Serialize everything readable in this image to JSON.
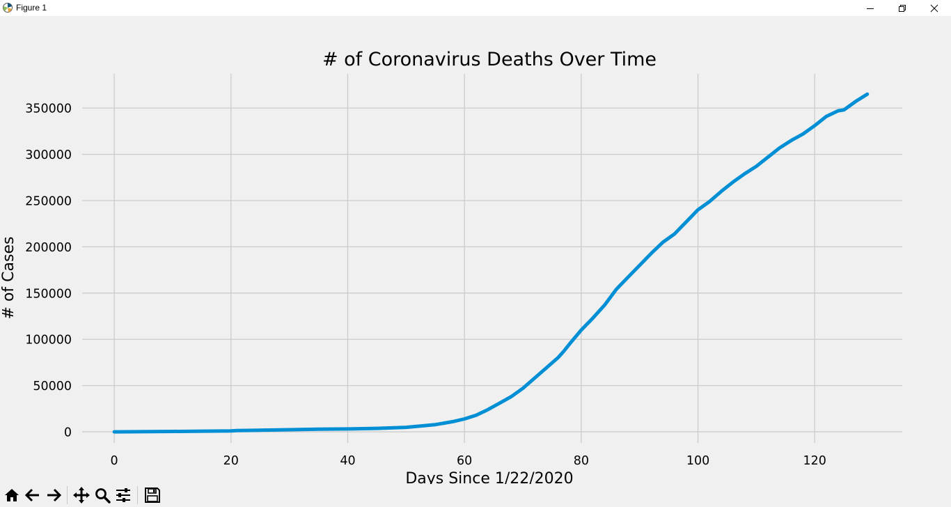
{
  "window": {
    "title": "Figure 1",
    "icons": {
      "app": "matplotlib-icon",
      "minimize": "minimize-icon",
      "maximize": "restore-icon",
      "close": "close-icon"
    }
  },
  "toolbar": {
    "buttons": [
      {
        "name": "home-icon"
      },
      {
        "name": "back-arrow-icon"
      },
      {
        "name": "forward-arrow-icon"
      },
      {
        "name": "pan-icon"
      },
      {
        "name": "zoom-icon"
      },
      {
        "name": "configure-subplots-icon"
      },
      {
        "name": "save-icon"
      }
    ]
  },
  "chart_data": {
    "type": "line",
    "title": "# of Coronavirus Deaths Over Time",
    "xlabel": "Days Since 1/22/2020",
    "ylabel": "# of Cases",
    "xlim": [
      -5.5,
      135
    ],
    "ylim": [
      -12000,
      387000
    ],
    "xticks": [
      0,
      20,
      40,
      60,
      80,
      100,
      120
    ],
    "yticks": [
      0,
      50000,
      100000,
      150000,
      200000,
      250000,
      300000,
      350000
    ],
    "grid": true,
    "line_color": "#008fd5",
    "grid_color": "#cbcbcb",
    "series": [
      {
        "name": "",
        "points": [
          [
            0,
            0
          ],
          [
            10,
            400
          ],
          [
            20,
            1000
          ],
          [
            21,
            1300
          ],
          [
            25,
            1800
          ],
          [
            30,
            2300
          ],
          [
            35,
            2800
          ],
          [
            40,
            3100
          ],
          [
            45,
            3700
          ],
          [
            50,
            4900
          ],
          [
            55,
            7800
          ],
          [
            58,
            11000
          ],
          [
            60,
            14000
          ],
          [
            62,
            18000
          ],
          [
            64,
            24000
          ],
          [
            66,
            31000
          ],
          [
            68,
            38000
          ],
          [
            70,
            47000
          ],
          [
            72,
            58000
          ],
          [
            74,
            69000
          ],
          [
            76,
            80000
          ],
          [
            77,
            87000
          ],
          [
            78,
            95000
          ],
          [
            80,
            110000
          ],
          [
            82,
            123000
          ],
          [
            84,
            137000
          ],
          [
            86,
            154000
          ],
          [
            88,
            167000
          ],
          [
            90,
            180000
          ],
          [
            92,
            193000
          ],
          [
            94,
            205000
          ],
          [
            96,
            214000
          ],
          [
            98,
            227000
          ],
          [
            100,
            240000
          ],
          [
            102,
            249000
          ],
          [
            104,
            260000
          ],
          [
            106,
            270000
          ],
          [
            108,
            279000
          ],
          [
            110,
            287000
          ],
          [
            112,
            297000
          ],
          [
            114,
            307000
          ],
          [
            116,
            315000
          ],
          [
            118,
            322000
          ],
          [
            120,
            331000
          ],
          [
            122,
            341000
          ],
          [
            124,
            347000
          ],
          [
            125,
            348000
          ],
          [
            127,
            357000
          ],
          [
            129,
            365000
          ]
        ]
      }
    ]
  }
}
